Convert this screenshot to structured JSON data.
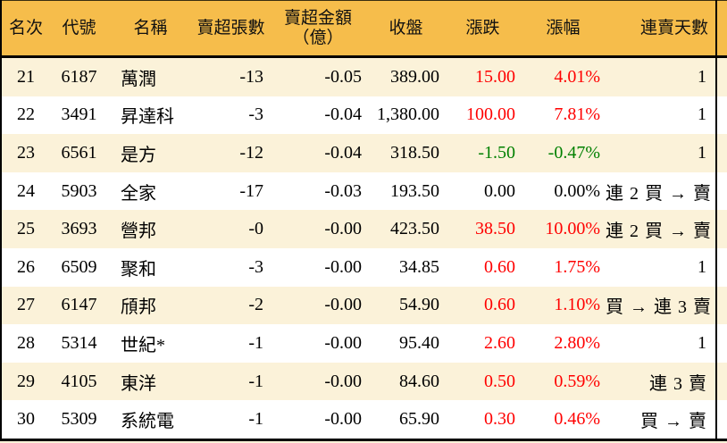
{
  "table": {
    "headers": {
      "rank": "名次",
      "code": "代號",
      "name": "名稱",
      "sell_volume": "賣超張數",
      "sell_amount_line1": "賣超金額",
      "sell_amount_line2": "（億）",
      "close": "收盤",
      "change": "漲跌",
      "change_pct": "漲幅",
      "streak": "連賣天數"
    },
    "rows": [
      {
        "rank": "21",
        "code": "6187",
        "name": "萬潤",
        "sell_volume": "-13",
        "sell_amount": "-0.05",
        "close": "389.00",
        "change": "15.00",
        "change_pct": "4.01%",
        "streak": "1",
        "trend": "up"
      },
      {
        "rank": "22",
        "code": "3491",
        "name": "昇達科",
        "sell_volume": "-3",
        "sell_amount": "-0.04",
        "close": "1,380.00",
        "change": "100.00",
        "change_pct": "7.81%",
        "streak": "1",
        "trend": "up"
      },
      {
        "rank": "23",
        "code": "6561",
        "name": "是方",
        "sell_volume": "-12",
        "sell_amount": "-0.04",
        "close": "318.50",
        "change": "-1.50",
        "change_pct": "-0.47%",
        "streak": "1",
        "trend": "down"
      },
      {
        "rank": "24",
        "code": "5903",
        "name": "全家",
        "sell_volume": "-17",
        "sell_amount": "-0.03",
        "close": "193.50",
        "change": "0.00",
        "change_pct": "0.00%",
        "streak": "連 2 買 → 賣",
        "trend": "flat"
      },
      {
        "rank": "25",
        "code": "3693",
        "name": "營邦",
        "sell_volume": "-0",
        "sell_amount": "-0.00",
        "close": "423.50",
        "change": "38.50",
        "change_pct": "10.00%",
        "streak": "連 2 買 → 賣",
        "trend": "up"
      },
      {
        "rank": "26",
        "code": "6509",
        "name": "聚和",
        "sell_volume": "-3",
        "sell_amount": "-0.00",
        "close": "34.85",
        "change": "0.60",
        "change_pct": "1.75%",
        "streak": "1",
        "trend": "up"
      },
      {
        "rank": "27",
        "code": "6147",
        "name": "頎邦",
        "sell_volume": "-2",
        "sell_amount": "-0.00",
        "close": "54.90",
        "change": "0.60",
        "change_pct": "1.10%",
        "streak": "買 → 連 3 賣",
        "trend": "up"
      },
      {
        "rank": "28",
        "code": "5314",
        "name": "世紀*",
        "sell_volume": "-1",
        "sell_amount": "-0.00",
        "close": "95.40",
        "change": "2.60",
        "change_pct": "2.80%",
        "streak": "1",
        "trend": "up"
      },
      {
        "rank": "29",
        "code": "4105",
        "name": "東洋",
        "sell_volume": "-1",
        "sell_amount": "-0.00",
        "close": "84.60",
        "change": "0.50",
        "change_pct": "0.59%",
        "streak": "連 3 賣",
        "trend": "up"
      },
      {
        "rank": "30",
        "code": "5309",
        "name": "系統電",
        "sell_volume": "-1",
        "sell_amount": "-0.00",
        "close": "65.90",
        "change": "0.30",
        "change_pct": "0.46%",
        "streak": "買 → 賣",
        "trend": "up"
      }
    ]
  },
  "colors": {
    "up": "#ff0000",
    "down": "#008000",
    "flat": "#000000",
    "header_bg": "#f6bd4b",
    "row_odd_bg": "#fbf2d9",
    "row_even_bg": "#ffffff",
    "border": "#000000"
  }
}
